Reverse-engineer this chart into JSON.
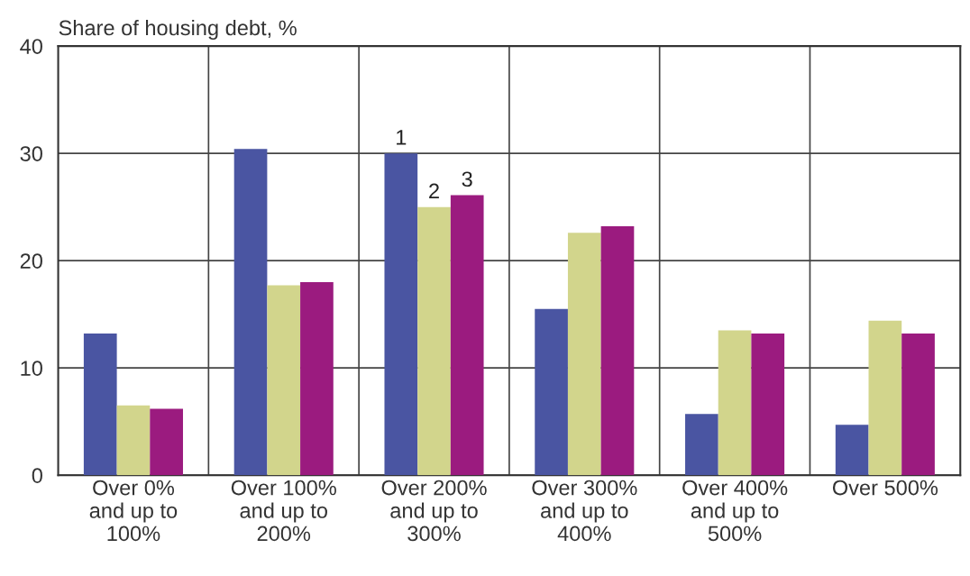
{
  "chart_data": {
    "type": "bar",
    "ylabel": "Share of housing debt, %",
    "categories": [
      "Over 0%\nand up to\n100%",
      "Over 100%\nand up to\n200%",
      "Over 200%\nand up to\n300%",
      "Over 300%\nand up to\n400%",
      "Over 400%\nand up to\n500%",
      "Over 500%"
    ],
    "series": [
      {
        "name": "1",
        "color": "#4a55a2",
        "values": [
          13.2,
          30.4,
          30.0,
          15.5,
          5.7,
          4.7
        ]
      },
      {
        "name": "2",
        "color": "#d2d58c",
        "values": [
          6.5,
          17.7,
          25.0,
          22.6,
          13.5,
          14.4
        ]
      },
      {
        "name": "3",
        "color": "#9b1b7f",
        "values": [
          6.2,
          18.0,
          26.1,
          23.2,
          13.2,
          13.2
        ]
      }
    ],
    "ylim": [
      0,
      40
    ],
    "yticks": [
      0,
      10,
      20,
      30,
      40
    ],
    "grid": true,
    "legend": false
  }
}
